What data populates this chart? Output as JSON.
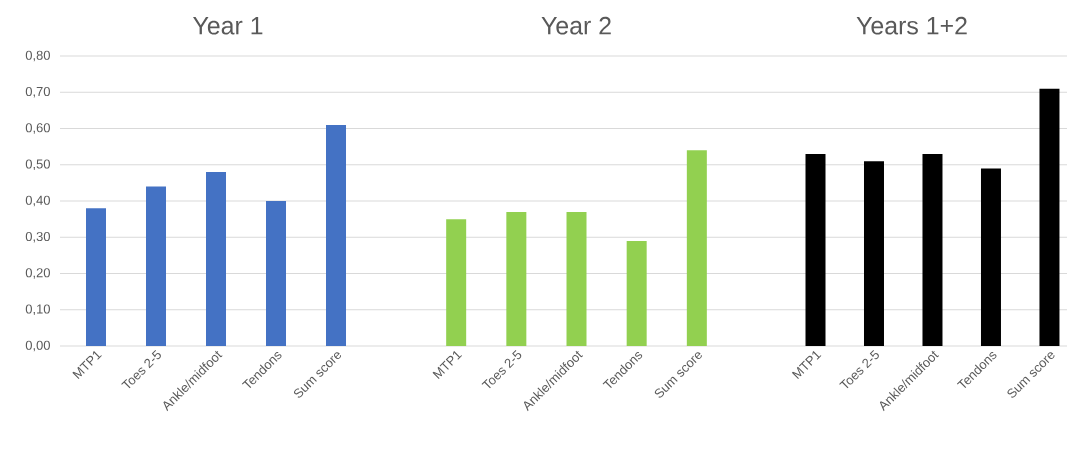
{
  "chart_data": [
    {
      "type": "bar",
      "title": "Year 1",
      "categories": [
        "MTP1",
        "Toes 2-5",
        "Ankle/midfoot",
        "Tendons",
        "Sum score"
      ],
      "values": [
        0.38,
        0.44,
        0.48,
        0.4,
        0.61
      ],
      "color": "#4472c4",
      "ylim": [
        0,
        0.8
      ],
      "yticks": [
        {
          "value": 0,
          "label": "0,00"
        },
        {
          "value": 0.1,
          "label": "0,10"
        },
        {
          "value": 0.2,
          "label": "0,20"
        },
        {
          "value": 0.3,
          "label": "0,30"
        },
        {
          "value": 0.4,
          "label": "0,40"
        },
        {
          "value": 0.5,
          "label": "0,50"
        },
        {
          "value": 0.6,
          "label": "0,60"
        },
        {
          "value": 0.7,
          "label": "0,70"
        },
        {
          "value": 0.8,
          "label": "0,80"
        }
      ],
      "grid": "y"
    },
    {
      "type": "bar",
      "title": "Year 2",
      "categories": [
        "MTP1",
        "Toes 2-5",
        "Ankle/midfoot",
        "Tendons",
        "Sum score"
      ],
      "values": [
        0.35,
        0.37,
        0.37,
        0.29,
        0.54
      ],
      "color": "#92d050",
      "ylim": [
        0,
        0.8
      ],
      "yticks": [
        {
          "value": 0,
          "label": null
        },
        {
          "value": 0.1,
          "label": null
        },
        {
          "value": 0.2,
          "label": null
        },
        {
          "value": 0.3,
          "label": null
        },
        {
          "value": 0.4,
          "label": null
        },
        {
          "value": 0.5,
          "label": null
        },
        {
          "value": 0.6,
          "label": null
        },
        {
          "value": 0.7,
          "label": null
        },
        {
          "value": 0.8,
          "label": null
        }
      ],
      "grid": "y",
      "tick_labels": "x"
    },
    {
      "type": "bar",
      "title": "Years 1+2",
      "categories": [
        "MTP1",
        "Toes 2-5",
        "Ankle/midfoot",
        "Tendons",
        "Sum score"
      ],
      "values": [
        0.53,
        0.51,
        0.53,
        0.49,
        0.71
      ],
      "color": "#000000",
      "ylim": [
        0,
        0.8
      ],
      "yticks": [
        {
          "value": 0,
          "label": null
        },
        {
          "value": 0.1,
          "label": null
        },
        {
          "value": 0.2,
          "label": null
        },
        {
          "value": 0.3,
          "label": null
        },
        {
          "value": 0.4,
          "label": null
        },
        {
          "value": 0.5,
          "label": null
        },
        {
          "value": 0.6,
          "label": null
        },
        {
          "value": 0.7,
          "label": null
        },
        {
          "value": 0.8,
          "label": null
        }
      ],
      "grid": "y",
      "tick_labels": "x"
    }
  ]
}
